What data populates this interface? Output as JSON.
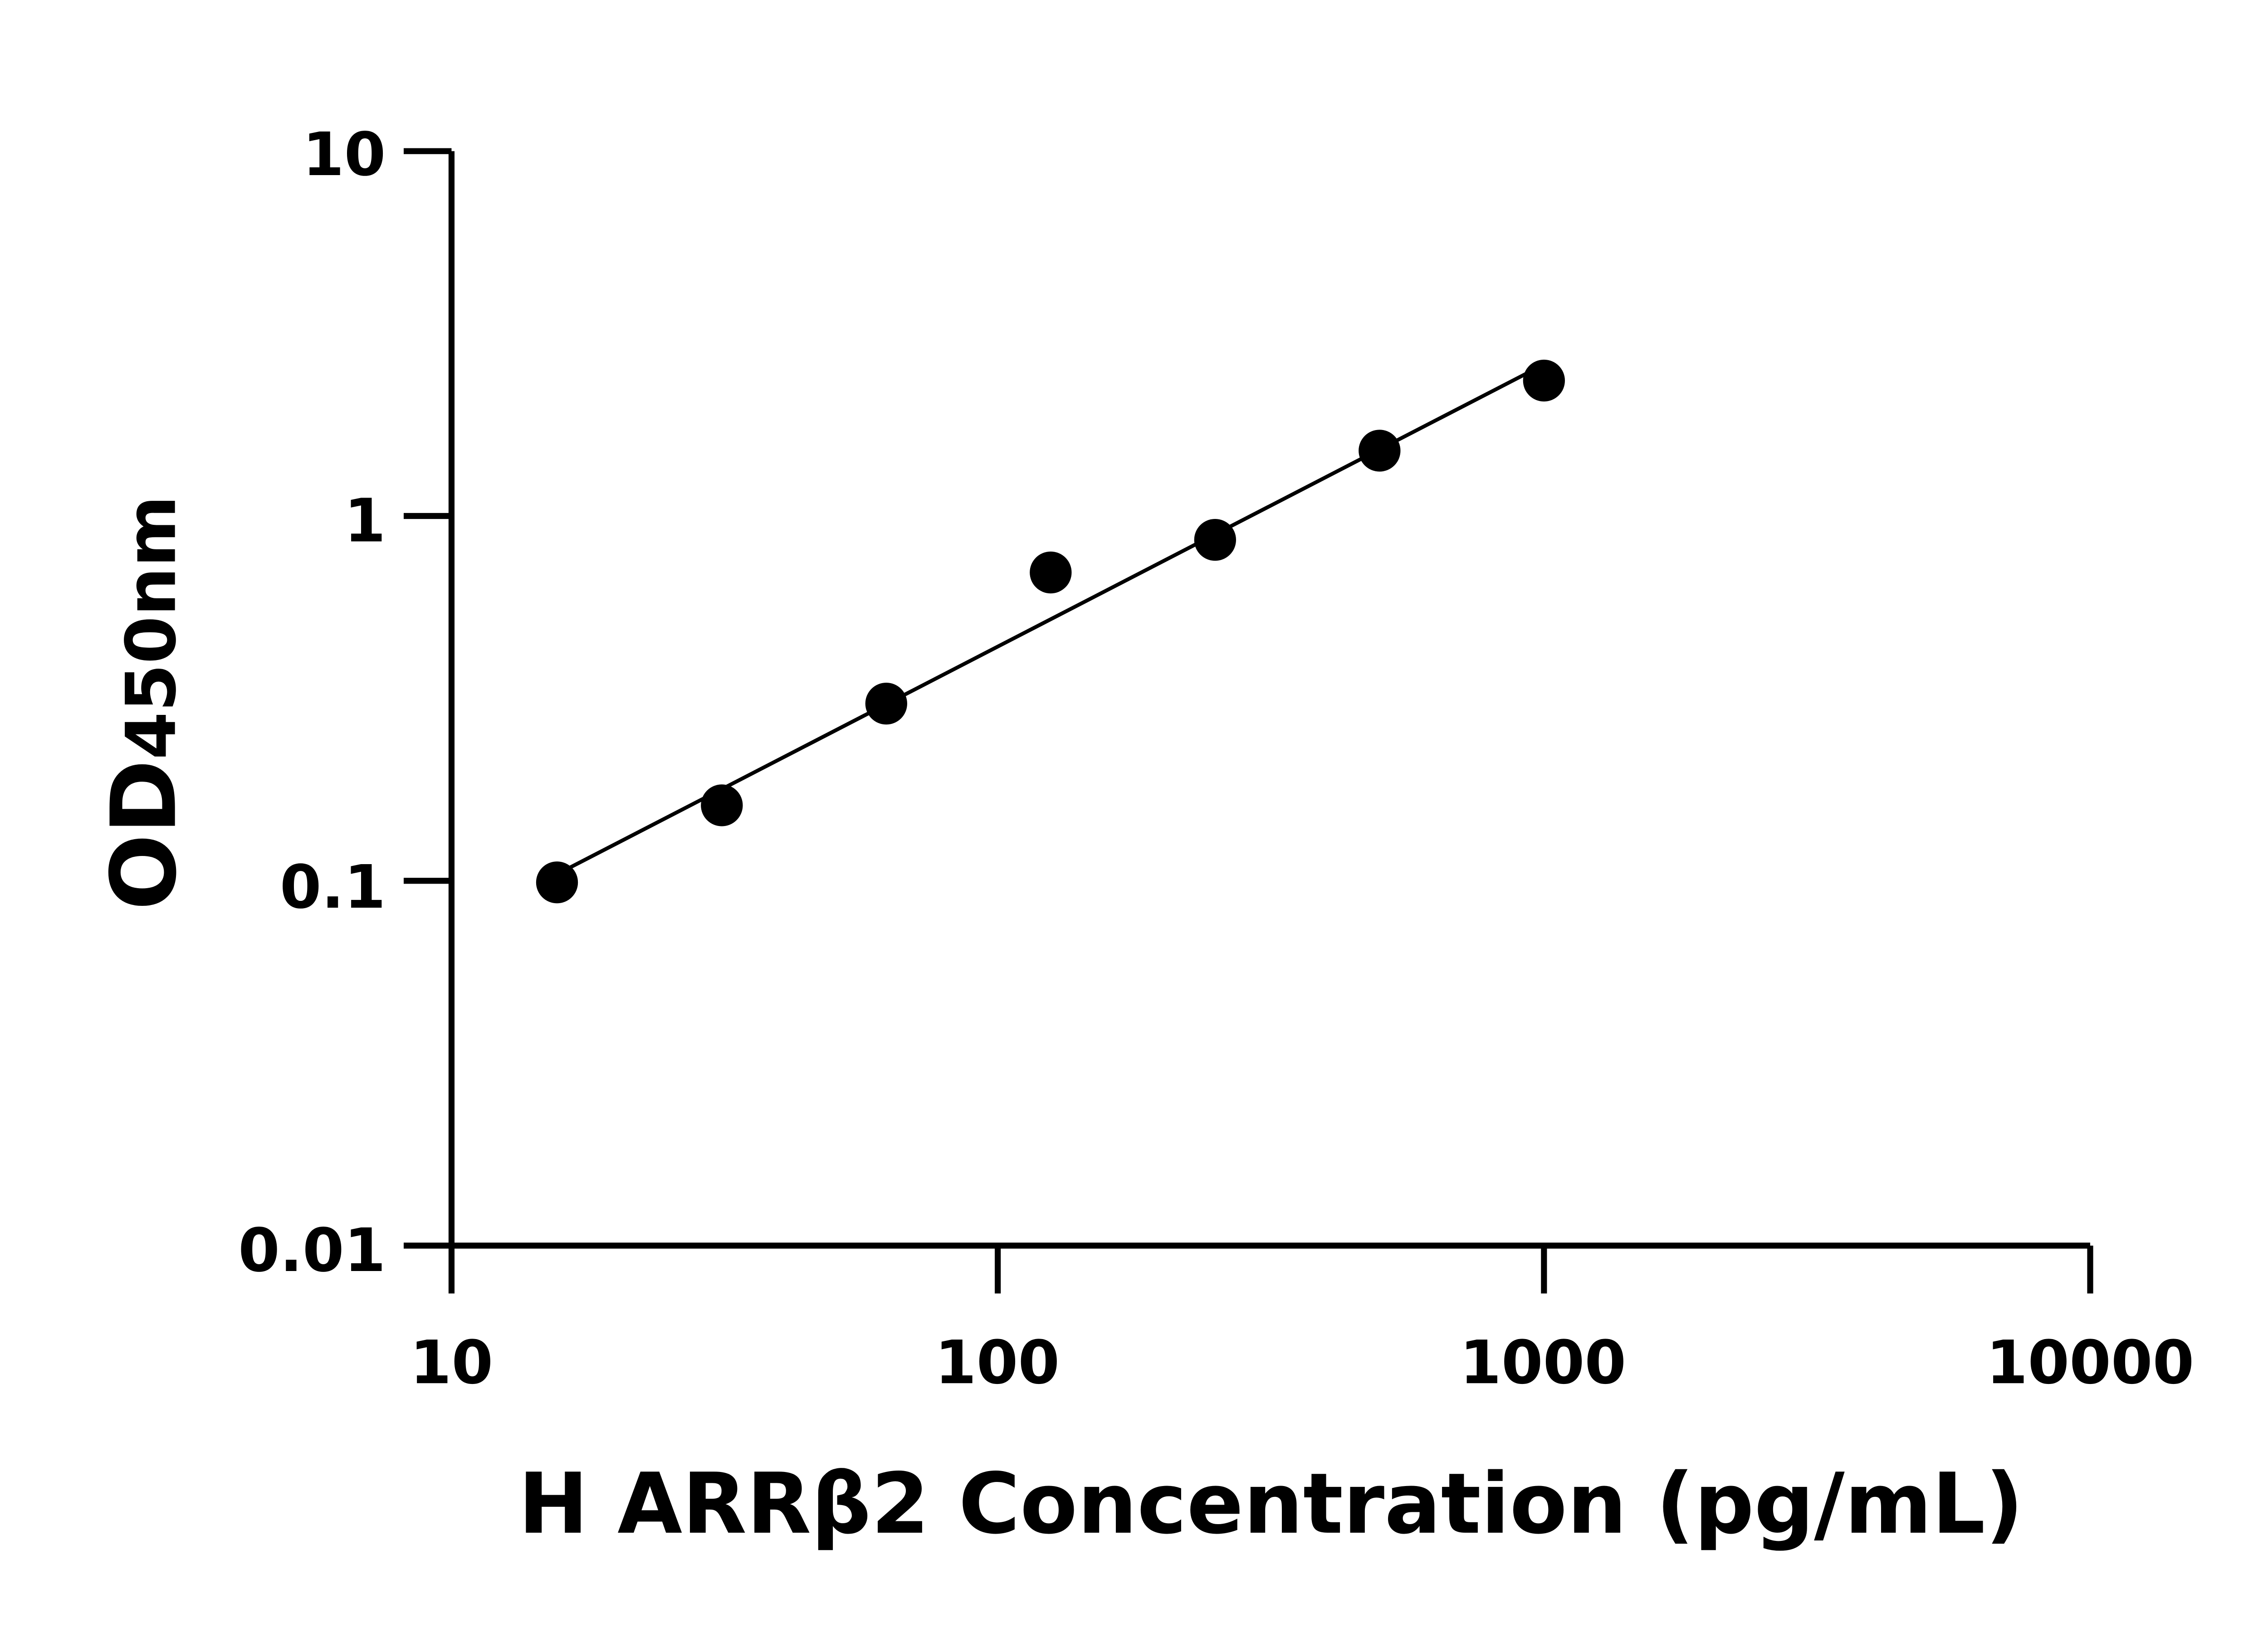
{
  "chart_data": {
    "type": "scatter",
    "title": "",
    "xlabel": "H ARRβ2 Concentration (pg/mL)",
    "ylabel_main": "OD",
    "ylabel_sub": "450nm",
    "x_scale": "log",
    "y_scale": "log",
    "xlim": [
      10,
      10000
    ],
    "ylim": [
      0.01,
      10
    ],
    "x_ticks": [
      "10",
      "100",
      "1000",
      "10000"
    ],
    "y_ticks": [
      "0.01",
      "0.1",
      "1",
      "10"
    ],
    "grid": false,
    "legend": "none",
    "points": [
      {
        "x": 15.6,
        "y": 0.099
      },
      {
        "x": 31.25,
        "y": 0.161
      },
      {
        "x": 62.5,
        "y": 0.306
      },
      {
        "x": 125,
        "y": 0.7
      },
      {
        "x": 250,
        "y": 0.86
      },
      {
        "x": 500,
        "y": 1.51
      },
      {
        "x": 1000,
        "y": 2.35
      }
    ],
    "fit_line": true,
    "colors": {
      "points": "#000000",
      "line": "#000000"
    }
  }
}
